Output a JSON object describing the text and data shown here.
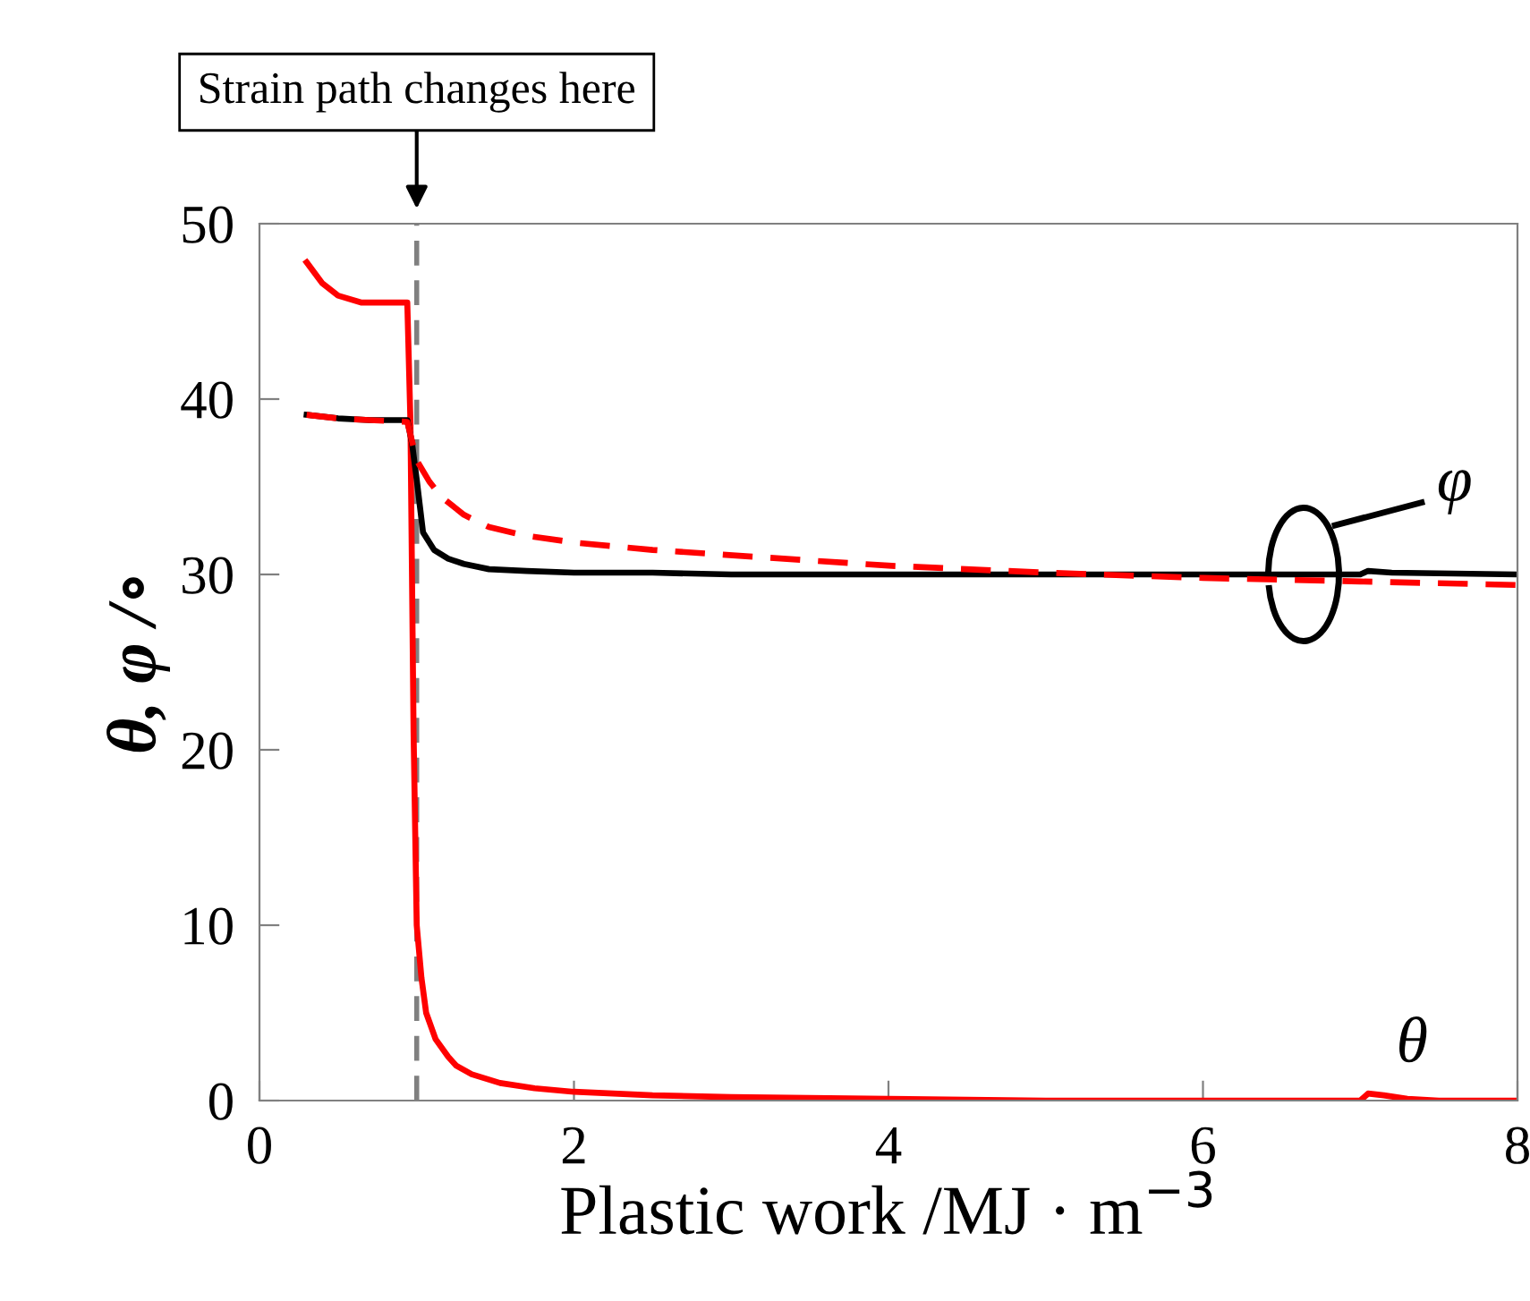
{
  "chart_data": {
    "type": "line",
    "xlabel": "Plastic work /MJ · m$^{−3}$",
    "ylabel": "θ, φ /∘",
    "xlim": [
      0,
      8
    ],
    "xticks": [
      0,
      2,
      4,
      6,
      8
    ],
    "ylim": [
      0,
      50
    ],
    "yticks": [
      0,
      10,
      20,
      30,
      40,
      50
    ],
    "grid": false,
    "legend": false,
    "marker": "none",
    "series": [
      {
        "color": "#ff0000",
        "line_style": "solid",
        "x": [
          0.3,
          0.4,
          0.5,
          0.65,
          0.8,
          0.94,
          0.96,
          0.98,
          1.0,
          1.03,
          1.06,
          1.12,
          1.2,
          1.25,
          1.35,
          1.53,
          1.75,
          2.0,
          2.5,
          3.0,
          4.0,
          5.0,
          6.0,
          7.0,
          7.05,
          7.15,
          7.3,
          7.5,
          8.0
        ],
        "values": [
          47.8,
          46.6,
          45.9,
          45.5,
          45.5,
          45.5,
          38.7,
          21,
          10,
          7,
          5,
          3.5,
          2.5,
          2,
          1.5,
          1.0,
          0.7,
          0.5,
          0.3,
          0.2,
          0.1,
          0.0,
          0.0,
          0.0,
          0.4,
          0.3,
          0.1,
          0.0,
          0.0
        ]
      },
      {
        "color": "#000000",
        "line_style": "solid",
        "x": [
          0.3,
          0.5,
          0.7,
          0.94,
          0.97,
          1.0,
          1.04,
          1.11,
          1.2,
          1.3,
          1.46,
          1.7,
          2.0,
          2.5,
          3.0,
          4.0,
          5.0,
          6.0,
          7.0,
          7.05,
          7.2,
          8.0
        ],
        "values": [
          39.1,
          38.9,
          38.8,
          38.8,
          37.5,
          35.4,
          32.4,
          31.4,
          30.9,
          30.6,
          30.3,
          30.2,
          30.1,
          30.1,
          30.0,
          30.0,
          30.0,
          30.0,
          30.0,
          30.2,
          30.1,
          30.0
        ]
      },
      {
        "color": "#ff0000",
        "line_style": "dashed",
        "x": [
          0.3,
          0.5,
          0.7,
          0.94,
          1.0,
          1.08,
          1.16,
          1.3,
          1.46,
          1.7,
          2.02,
          2.5,
          3.16,
          4.0,
          5.0,
          6.0,
          7.0,
          8.0
        ],
        "values": [
          39.1,
          38.9,
          38.8,
          38.7,
          36.5,
          35.3,
          34.4,
          33.4,
          32.7,
          32.2,
          31.8,
          31.4,
          31.0,
          30.5,
          30.1,
          29.8,
          29.6,
          29.4
        ]
      }
    ],
    "ref_lines": [
      {
        "axis": "x",
        "value": 1.0,
        "label": "Strain path changes here",
        "color": "#808080",
        "line_style": "dashed"
      }
    ],
    "annotations": [
      "φ",
      "θ"
    ]
  }
}
